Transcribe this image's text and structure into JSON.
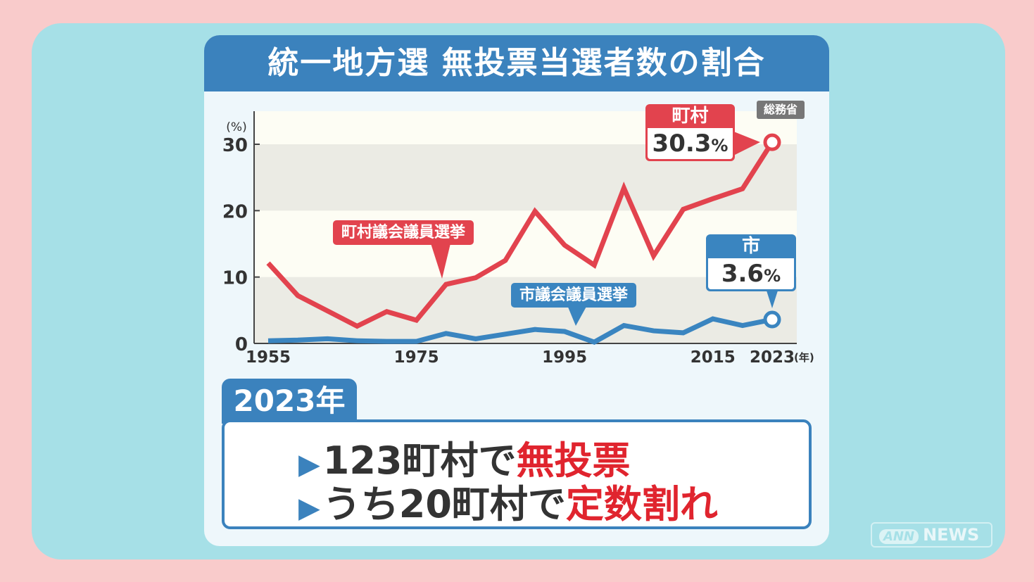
{
  "title": "統一地方選 無投票当選者数の割合",
  "source": "総務省",
  "chart_data": {
    "type": "line",
    "title": "統一地方選 無投票当選者数の割合",
    "ylabel": "(%)",
    "xlabel": "(年)",
    "ylim": [
      0,
      35
    ],
    "yticks": [
      "0",
      "10",
      "20",
      "30"
    ],
    "xticks": [
      "1955",
      "1975",
      "1995",
      "2015",
      "2023"
    ],
    "x": [
      1955,
      1959,
      1963,
      1967,
      1971,
      1975,
      1979,
      1983,
      1987,
      1991,
      1995,
      1999,
      2003,
      2007,
      2011,
      2015,
      2019,
      2023
    ],
    "series": [
      {
        "name": "町村議会議員選挙",
        "color": "#e2434e",
        "values": [
          12.1,
          7.2,
          4.9,
          2.6,
          4.8,
          3.5,
          8.9,
          9.9,
          12.5,
          19.9,
          14.8,
          11.8,
          23.4,
          13.2,
          20.2,
          21.8,
          23.3,
          30.3
        ]
      },
      {
        "name": "市議会議員選挙",
        "color": "#3a85c0",
        "values": [
          0.4,
          0.5,
          0.7,
          0.4,
          0.3,
          0.3,
          1.5,
          0.7,
          1.4,
          2.1,
          1.8,
          0.2,
          2.7,
          1.9,
          1.6,
          3.7,
          2.7,
          3.6
        ]
      }
    ],
    "annotations": {
      "town": {
        "label": "町村",
        "value": "30.3",
        "unit": "%"
      },
      "city": {
        "label": "市",
        "value": "3.6",
        "unit": "%"
      }
    }
  },
  "summary": {
    "tab": "2023年",
    "line1": {
      "marker": "▶",
      "text": "123町村で",
      "emph": "無投票"
    },
    "line2": {
      "marker": "▶",
      "text": "うち20町村で",
      "emph": "定数割れ"
    }
  },
  "logo": {
    "a": "ANN",
    "b": "NEWS"
  }
}
